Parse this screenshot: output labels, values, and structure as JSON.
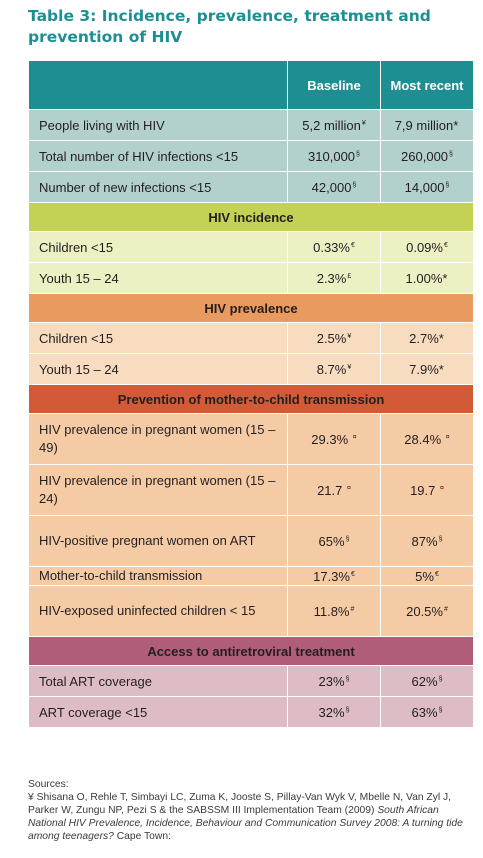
{
  "title": "Table 3: Incidence, prevalence, treatment and prevention of HIV",
  "header": {
    "col1": "",
    "col2": "Baseline",
    "col3": "Most recent"
  },
  "general_rows": [
    {
      "label": "People living with HIV",
      "baseline": "5,2 million",
      "baseline_mark": "¥",
      "recent": "7,9 million*",
      "recent_mark": ""
    },
    {
      "label": "Total number of HIV infections <15",
      "baseline": "310,000",
      "baseline_mark": "§",
      "recent": "260,000",
      "recent_mark": "§"
    },
    {
      "label": "Number of new infections <15",
      "baseline": "42,000",
      "baseline_mark": "§",
      "recent": "14,000",
      "recent_mark": "§"
    }
  ],
  "incidence": {
    "heading": "HIV incidence",
    "rows": [
      {
        "label": "Children <15",
        "baseline": "0.33%",
        "baseline_mark": "€",
        "recent": "0.09%",
        "recent_mark": "€"
      },
      {
        "label": "Youth 15 – 24",
        "baseline": "2.3%",
        "baseline_mark": "£",
        "recent": "1.00%*",
        "recent_mark": ""
      }
    ]
  },
  "prevalence": {
    "heading": "HIV prevalence",
    "rows": [
      {
        "label": "Children <15",
        "baseline": "2.5%",
        "baseline_mark": "¥",
        "recent": "2.7%*",
        "recent_mark": ""
      },
      {
        "label": "Youth 15 – 24",
        "baseline": "8.7%",
        "baseline_mark": "¥",
        "recent": "7.9%*",
        "recent_mark": ""
      }
    ]
  },
  "pmtct": {
    "heading": "Prevention of mother-to-child transmission",
    "rows": [
      {
        "label": "HIV prevalence in pregnant women (15 – 49)",
        "baseline": "29.3% ",
        "baseline_mark": "¤",
        "recent": "28.4% ",
        "recent_mark": "¤"
      },
      {
        "label": "HIV prevalence in pregnant women (15 – 24)",
        "baseline": "21.7 ",
        "baseline_mark": "¤",
        "recent": "19.7 ",
        "recent_mark": "¤"
      },
      {
        "label": "HIV-positive pregnant women on ART",
        "baseline": "65%",
        "baseline_mark": "§",
        "recent": "87%",
        "recent_mark": "§"
      },
      {
        "label": "Mother-to-child transmission",
        "baseline": "17.3%",
        "baseline_mark": "€",
        "recent": "5%",
        "recent_mark": "€"
      },
      {
        "label": "HIV-exposed uninfected children < 15",
        "baseline": "11.8%",
        "baseline_mark": "#",
        "recent": "20.5%",
        "recent_mark": "#"
      }
    ]
  },
  "art": {
    "heading": "Access to antiretroviral treatment",
    "rows": [
      {
        "label": "Total ART coverage",
        "baseline": "23%",
        "baseline_mark": "§",
        "recent": "62%",
        "recent_mark": "§"
      },
      {
        "label": "ART coverage <15",
        "baseline": "32%",
        "baseline_mark": "§",
        "recent": "63%",
        "recent_mark": "§"
      }
    ]
  },
  "sources": {
    "heading": "Sources:",
    "line": "¥ Shisana O, Rehle T, Simbayi LC, Zuma K, Jooste S, Pillay-Van Wyk V, Mbelle N, Van Zyl J, Parker W, Zungu NP, Pezi S & the SABSSM III Implementation Team (2009) ",
    "italic": "South African National HIV Prevalence, Incidence, Behaviour and Communication Survey 2008: A turning tide among teenagers?",
    "tail": " Cape Town:"
  },
  "colors": {
    "title": "#1d8f93",
    "header": "#1d8f93",
    "general": "#b3d1cc",
    "incidence_head": "#c3d254",
    "incidence_rows": "#ecf0c3",
    "prevalence_head": "#e99a5f",
    "prevalence_rows": "#f8dcc0",
    "pmtct_head": "#d25a36",
    "pmtct_rows": "#f5cba6",
    "art_head": "#b05d7a",
    "art_rows": "#ddbcc6"
  }
}
